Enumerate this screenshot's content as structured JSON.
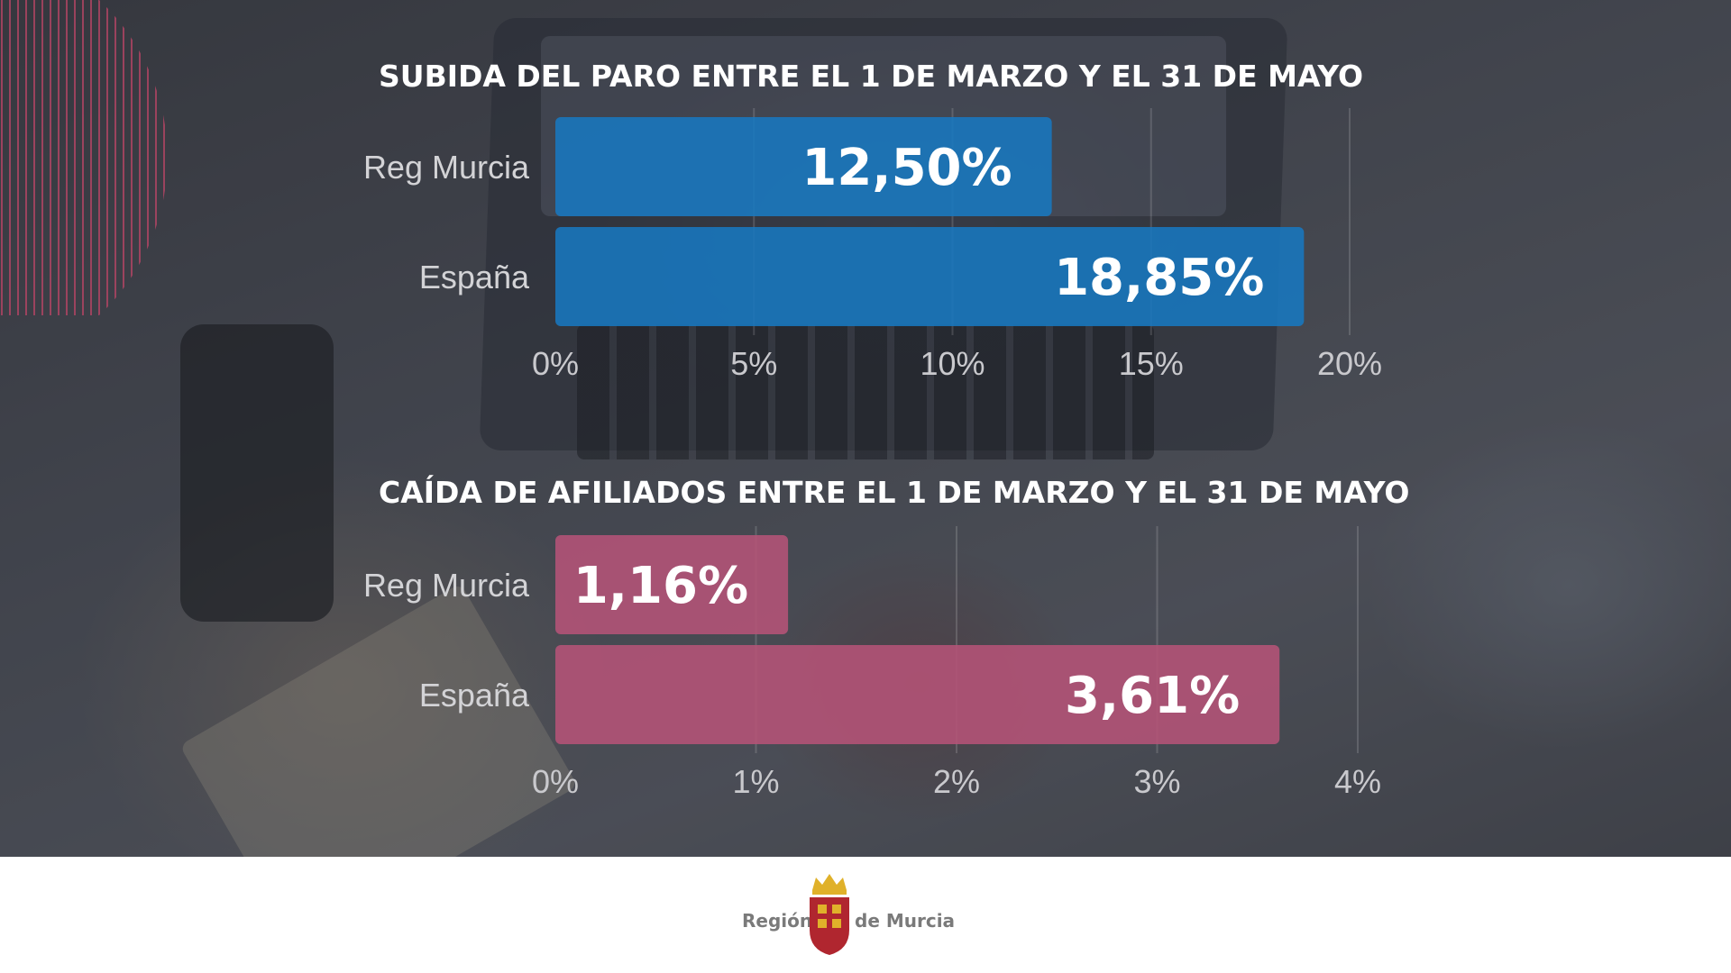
{
  "chart_data": [
    {
      "type": "bar",
      "orientation": "horizontal",
      "title": "SUBIDA DEL PARO ENTRE EL 1 DE MARZO Y EL 31 DE MAYO",
      "categories": [
        "Reg Murcia",
        "España"
      ],
      "values": [
        12.5,
        18.85
      ],
      "value_labels": [
        "12,50%",
        "18,85%"
      ],
      "xlim": [
        0,
        20
      ],
      "ticks": [
        0,
        5,
        10,
        15,
        20
      ],
      "tick_labels": [
        "0%",
        "5%",
        "10%",
        "15%",
        "20%"
      ],
      "color": "#1877bf",
      "grid": true
    },
    {
      "type": "bar",
      "orientation": "horizontal",
      "title": "CAÍDA DE AFILIADOS ENTRE EL 1 DE MARZO Y EL 31 DE MAYO",
      "categories": [
        "Reg Murcia",
        "España"
      ],
      "values": [
        1.16,
        3.61
      ],
      "value_labels": [
        "1,16%",
        "3,61%"
      ],
      "xlim": [
        0,
        4
      ],
      "ticks": [
        0,
        1,
        2,
        3,
        4
      ],
      "tick_labels": [
        "0%",
        "1%",
        "2%",
        "3%",
        "4%"
      ],
      "color": "#b55377",
      "grid": true
    }
  ],
  "footer": {
    "logo_left": "Región",
    "logo_right": "de Murcia",
    "accent_red": "#b0262f",
    "accent_gold": "#e0b12a"
  }
}
